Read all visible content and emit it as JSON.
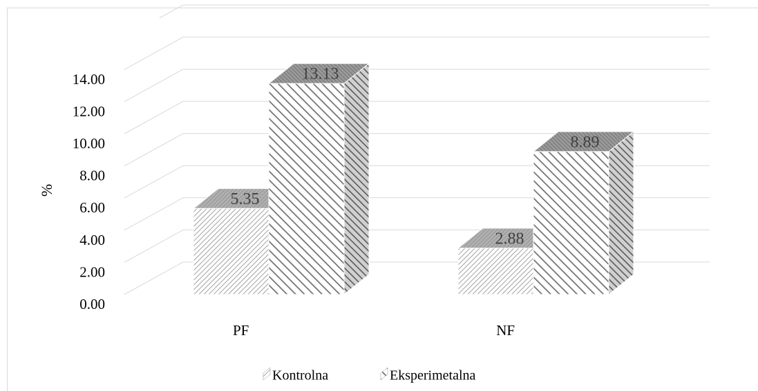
{
  "chart_data": {
    "type": "bar",
    "style": "3d-clustered-column",
    "categories": [
      "PF",
      "NF"
    ],
    "series": [
      {
        "name": "Kontrolna",
        "values": [
          5.35,
          2.88
        ],
        "pattern": "light-diagonal"
      },
      {
        "name": "Eksperimetalna",
        "values": [
          13.13,
          8.89
        ],
        "pattern": "wide-diagonal"
      }
    ],
    "data_labels": [
      [
        "5.35",
        "2.88"
      ],
      [
        "13.13",
        "8.89"
      ]
    ],
    "ylabel": "%",
    "yticks": [
      "0.00",
      "2.00",
      "4.00",
      "6.00",
      "8.00",
      "10.00",
      "12.00",
      "14.00"
    ],
    "ylim": [
      0,
      14
    ],
    "grid": true,
    "legend": "bottom",
    "colors": {
      "grid": "#d9d9d9",
      "hatch": "#7f7f7f",
      "text": "#404040",
      "tick_text": "#000000"
    }
  }
}
